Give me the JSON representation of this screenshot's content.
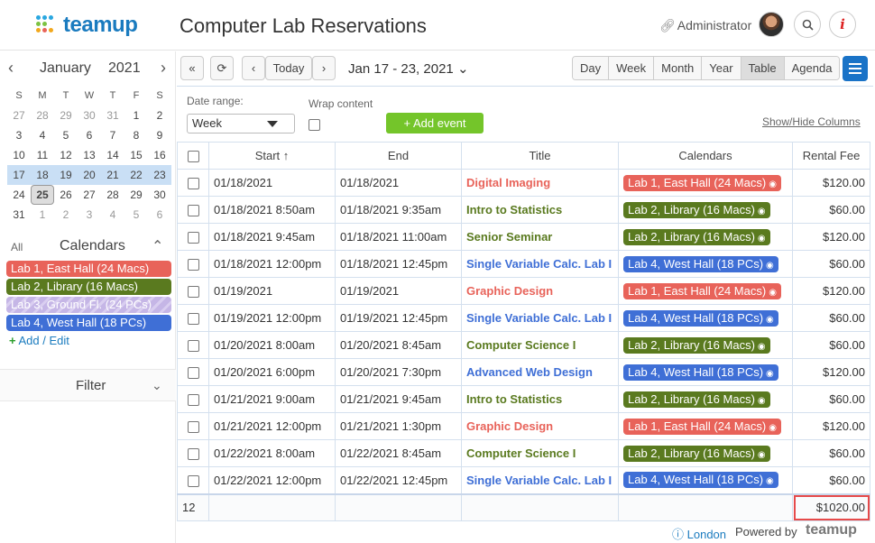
{
  "app": {
    "brand": "teamup",
    "title": "Computer Lab Reservations",
    "user": "Administrator"
  },
  "colors": {
    "lab1": "#e8635a",
    "lab2": "#5a7a1f",
    "lab3": "#c5b6e6",
    "lab4": "#3f6fd6",
    "accent": "#1a73c7",
    "add_event": "#74c52a"
  },
  "mini_calendar": {
    "month": "January",
    "year": "2021",
    "dow": [
      "S",
      "M",
      "T",
      "W",
      "T",
      "F",
      "S"
    ],
    "weeks": [
      [
        {
          "d": "27",
          "m": true
        },
        {
          "d": "28",
          "m": true
        },
        {
          "d": "29",
          "m": true
        },
        {
          "d": "30",
          "m": true
        },
        {
          "d": "31",
          "m": true
        },
        {
          "d": "1"
        },
        {
          "d": "2"
        }
      ],
      [
        {
          "d": "3"
        },
        {
          "d": "4"
        },
        {
          "d": "5"
        },
        {
          "d": "6"
        },
        {
          "d": "7"
        },
        {
          "d": "8"
        },
        {
          "d": "9"
        }
      ],
      [
        {
          "d": "10"
        },
        {
          "d": "11"
        },
        {
          "d": "12"
        },
        {
          "d": "13"
        },
        {
          "d": "14"
        },
        {
          "d": "15"
        },
        {
          "d": "16"
        }
      ],
      [
        {
          "d": "17",
          "w": true
        },
        {
          "d": "18",
          "w": true
        },
        {
          "d": "19",
          "w": true
        },
        {
          "d": "20",
          "w": true
        },
        {
          "d": "21",
          "w": true
        },
        {
          "d": "22",
          "w": true
        },
        {
          "d": "23",
          "w": true
        }
      ],
      [
        {
          "d": "24"
        },
        {
          "d": "25",
          "t": true
        },
        {
          "d": "26"
        },
        {
          "d": "27"
        },
        {
          "d": "28"
        },
        {
          "d": "29"
        },
        {
          "d": "30"
        }
      ],
      [
        {
          "d": "31"
        },
        {
          "d": "1",
          "m": true
        },
        {
          "d": "2",
          "m": true
        },
        {
          "d": "3",
          "m": true
        },
        {
          "d": "4",
          "m": true
        },
        {
          "d": "5",
          "m": true
        },
        {
          "d": "6",
          "m": true
        }
      ]
    ]
  },
  "calendars": {
    "all_label": "All",
    "title": "Calendars",
    "items": [
      {
        "label": "Lab 1, East Hall (24 Macs)",
        "color": "#e8635a"
      },
      {
        "label": "Lab 2, Library (16 Macs)",
        "color": "#5a7a1f"
      },
      {
        "label": "Lab 3, Ground Fl. (24 PCs)",
        "color": "#c5b6e6"
      },
      {
        "label": "Lab 4, West Hall (18 PCs)",
        "color": "#3f6fd6"
      }
    ],
    "add_edit": "Add / Edit"
  },
  "filter": {
    "label": "Filter"
  },
  "toolbar": {
    "today": "Today",
    "range": "Jan 17 - 23, 2021",
    "views": [
      "Day",
      "Week",
      "Month",
      "Year",
      "Table",
      "Agenda"
    ],
    "active_view": "Table"
  },
  "controls": {
    "date_range_label": "Date range:",
    "date_range_value": "Week",
    "wrap_label": "Wrap content",
    "add_event": "+ Add event",
    "show_hide": "Show/Hide Columns"
  },
  "table": {
    "headers": {
      "start": "Start",
      "end": "End",
      "title": "Title",
      "calendars": "Calendars",
      "fee": "Rental Fee"
    },
    "rows": [
      {
        "start": "01/18/2021",
        "end": "01/18/2021",
        "title": "Digital Imaging",
        "cal": "Lab 1, East Hall (24 Macs)",
        "color": "#e8635a",
        "fee": "$120.00"
      },
      {
        "start": "01/18/2021 8:50am",
        "end": "01/18/2021 9:35am",
        "title": "Intro to Statistics",
        "cal": "Lab 2, Library (16 Macs)",
        "color": "#5a7a1f",
        "fee": "$60.00"
      },
      {
        "start": "01/18/2021 9:45am",
        "end": "01/18/2021 11:00am",
        "title": "Senior Seminar",
        "cal": "Lab 2, Library (16 Macs)",
        "color": "#5a7a1f",
        "fee": "$120.00"
      },
      {
        "start": "01/18/2021 12:00pm",
        "end": "01/18/2021 12:45pm",
        "title": "Single Variable Calc. Lab I",
        "cal": "Lab 4, West Hall (18 PCs)",
        "color": "#3f6fd6",
        "fee": "$60.00"
      },
      {
        "start": "01/19/2021",
        "end": "01/19/2021",
        "title": "Graphic Design",
        "cal": "Lab 1, East Hall (24 Macs)",
        "color": "#e8635a",
        "fee": "$120.00"
      },
      {
        "start": "01/19/2021 12:00pm",
        "end": "01/19/2021 12:45pm",
        "title": "Single Variable Calc. Lab I",
        "cal": "Lab 4, West Hall (18 PCs)",
        "color": "#3f6fd6",
        "fee": "$60.00"
      },
      {
        "start": "01/20/2021 8:00am",
        "end": "01/20/2021 8:45am",
        "title": "Computer Science I",
        "cal": "Lab 2, Library (16 Macs)",
        "color": "#5a7a1f",
        "fee": "$60.00"
      },
      {
        "start": "01/20/2021 6:00pm",
        "end": "01/20/2021 7:30pm",
        "title": "Advanced Web Design",
        "cal": "Lab 4, West Hall (18 PCs)",
        "color": "#3f6fd6",
        "fee": "$120.00"
      },
      {
        "start": "01/21/2021 9:00am",
        "end": "01/21/2021 9:45am",
        "title": "Intro to Statistics",
        "cal": "Lab 2, Library (16 Macs)",
        "color": "#5a7a1f",
        "fee": "$60.00"
      },
      {
        "start": "01/21/2021 12:00pm",
        "end": "01/21/2021 1:30pm",
        "title": "Graphic Design",
        "cal": "Lab 1, East Hall (24 Macs)",
        "color": "#e8635a",
        "fee": "$120.00"
      },
      {
        "start": "01/22/2021 8:00am",
        "end": "01/22/2021 8:45am",
        "title": "Computer Science I",
        "cal": "Lab 2, Library (16 Macs)",
        "color": "#5a7a1f",
        "fee": "$60.00"
      },
      {
        "start": "01/22/2021 12:00pm",
        "end": "01/22/2021 12:45pm",
        "title": "Single Variable Calc. Lab I",
        "cal": "Lab 4, West Hall (18 PCs)",
        "color": "#3f6fd6",
        "fee": "$60.00"
      }
    ],
    "total_count": "12",
    "total_fee": "$1020.00"
  },
  "footer": {
    "timezone": "London",
    "powered": "Powered by",
    "brand": "teamup"
  }
}
